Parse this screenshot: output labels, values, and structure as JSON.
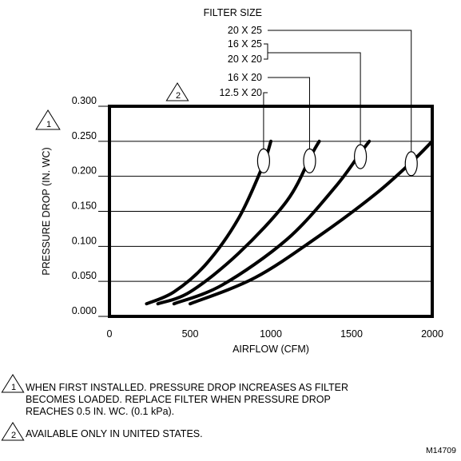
{
  "chart_data": {
    "type": "line",
    "title": "",
    "xlabel": "AIRFLOW (CFM)",
    "ylabel": "PRESSURE DROP (IN. WC)",
    "xlim": [
      0,
      2000
    ],
    "ylim": [
      0,
      0.3
    ],
    "x_ticks": [
      "0",
      "500",
      "1000",
      "1500",
      "2000"
    ],
    "y_ticks": [
      "0.000",
      "0.050",
      "0.100",
      "0.150",
      "0.200",
      "0.250",
      "0.300"
    ],
    "grid": "horizontal",
    "y_axis_note_marker": "1",
    "series": [
      {
        "name": "12.5 X 20",
        "x": [
          230,
          400,
          600,
          800,
          950,
          1000
        ],
        "y": [
          0.018,
          0.035,
          0.075,
          0.14,
          0.215,
          0.25
        ]
      },
      {
        "name": "16 X 20",
        "x": [
          300,
          500,
          800,
          1100,
          1250,
          1300
        ],
        "y": [
          0.018,
          0.035,
          0.09,
          0.165,
          0.23,
          0.25
        ]
      },
      {
        "name": "16 X 25 / 20 X 20",
        "x": [
          400,
          700,
          1100,
          1400,
          1560,
          1610
        ],
        "y": [
          0.018,
          0.045,
          0.11,
          0.185,
          0.235,
          0.25
        ]
      },
      {
        "name": "20 X 25",
        "x": [
          500,
          900,
          1300,
          1650,
          1870,
          2000
        ],
        "y": [
          0.018,
          0.055,
          0.115,
          0.175,
          0.22,
          0.25
        ]
      }
    ],
    "legend": {
      "heading": "FILTER SIZE",
      "labels": [
        "20 X 25",
        "16 X 25",
        "20 X 20",
        "16 X 20",
        "12.5 X 20"
      ],
      "marker_2_label": "2"
    }
  },
  "notes": {
    "note1_marker": "1",
    "note1_lines": [
      "WHEN FIRST INSTALLED. PRESSURE DROP INCREASES AS FILTER",
      "BECOMES LOADED. REPLACE FILTER WHEN PRESSURE DROP",
      "REACHES 0.5 IN. WC. (0.1 kPa)."
    ],
    "note2_marker": "2",
    "note2_text": "AVAILABLE ONLY IN UNITED STATES."
  },
  "figure_id": "M14709"
}
